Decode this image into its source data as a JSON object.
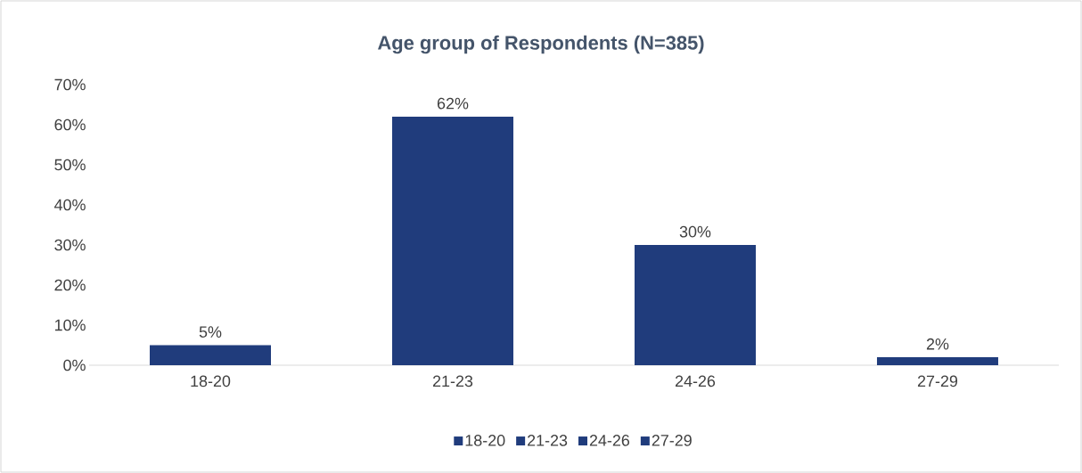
{
  "chart_data": {
    "type": "bar",
    "title": "Age group of Respondents (N=385)",
    "categories": [
      "18-20",
      "21-23",
      "24-26",
      "27-29"
    ],
    "stacked": true,
    "series": [
      {
        "name": "18-20",
        "color": "#203c7c",
        "values": [
          5,
          null,
          null,
          null
        ],
        "value_labels": [
          "5%",
          null,
          null,
          null
        ]
      },
      {
        "name": "21-23",
        "color": "#203c7c",
        "values": [
          null,
          62,
          null,
          null
        ],
        "value_labels": [
          null,
          "62%",
          null,
          null
        ]
      },
      {
        "name": "24-26",
        "color": "#203c7c",
        "values": [
          null,
          null,
          30,
          null
        ],
        "value_labels": [
          null,
          null,
          "30%",
          null
        ]
      },
      {
        "name": "27-29",
        "color": "#203c7c",
        "values": [
          null,
          null,
          null,
          2
        ],
        "value_labels": [
          null,
          null,
          null,
          "2%"
        ]
      }
    ],
    "ylim": [
      0,
      70
    ],
    "yticks": [
      {
        "value": 0,
        "label": "0%"
      },
      {
        "value": 10,
        "label": "10%"
      },
      {
        "value": 20,
        "label": "20%"
      },
      {
        "value": 30,
        "label": "30%"
      },
      {
        "value": 40,
        "label": "40%"
      },
      {
        "value": 50,
        "label": "50%"
      },
      {
        "value": 60,
        "label": "60%"
      },
      {
        "value": 70,
        "label": "70%"
      }
    ],
    "grid": false,
    "legend": "bottom"
  }
}
